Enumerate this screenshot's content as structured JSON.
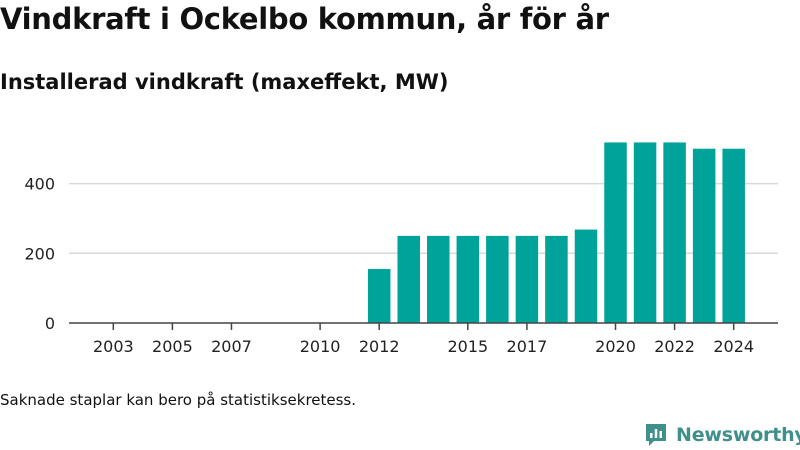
{
  "header": {
    "title": "Vindkraft i Ockelbo kommun, år för år",
    "subtitle": "Installerad vindkraft (maxeffekt, MW)"
  },
  "footer": {
    "note": "Saknade staplar kan bero på statistiksekretess.",
    "brand": "Newsworthy"
  },
  "colors": {
    "bar": "#00a39a",
    "grid": "#d9d9d9",
    "axis": "#444444",
    "brand": "#3f8f8a"
  },
  "chart_data": {
    "type": "bar",
    "title": "Installerad vindkraft (maxeffekt, MW)",
    "xlabel": "",
    "ylabel": "",
    "x_range": [
      2001.5,
      2025.5
    ],
    "ylim": [
      0,
      525
    ],
    "yticks": [
      0,
      200,
      400
    ],
    "xticks": [
      2003,
      2005,
      2007,
      2010,
      2012,
      2015,
      2017,
      2020,
      2022,
      2024
    ],
    "grid": true,
    "categories": [
      2012,
      2013,
      2014,
      2015,
      2016,
      2017,
      2018,
      2019,
      2020,
      2021,
      2022,
      2023,
      2024
    ],
    "values": [
      155,
      250,
      250,
      250,
      250,
      250,
      250,
      268,
      518,
      518,
      518,
      500,
      500
    ]
  }
}
